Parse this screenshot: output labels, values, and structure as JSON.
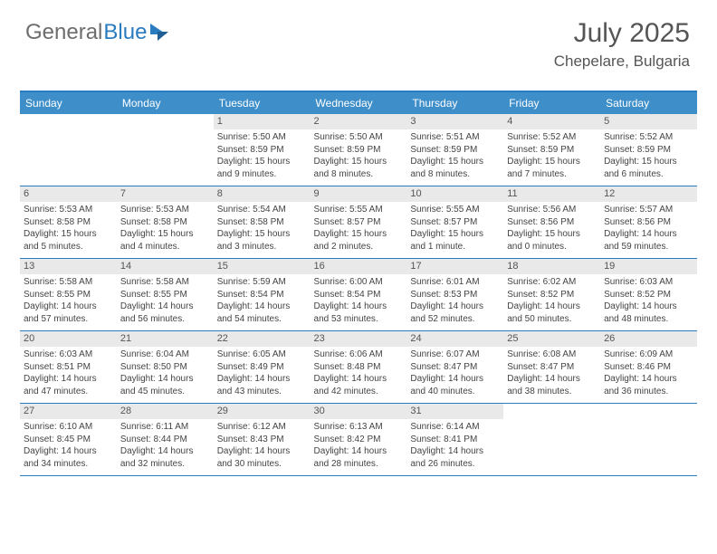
{
  "brand": {
    "part1": "General",
    "part2": "Blue"
  },
  "title": "July 2025",
  "location": "Chepelare, Bulgaria",
  "colors": {
    "header_bg": "#3d8ec9",
    "border": "#2a7bbf",
    "daynum_bg": "#e9e9e9",
    "text": "#555555",
    "body_text": "#444444",
    "background": "#ffffff"
  },
  "typography": {
    "title_fontsize": 30,
    "location_fontsize": 17,
    "dayheader_fontsize": 12,
    "daynum_fontsize": 11,
    "body_fontsize": 10
  },
  "day_headers": [
    "Sunday",
    "Monday",
    "Tuesday",
    "Wednesday",
    "Thursday",
    "Friday",
    "Saturday"
  ],
  "weeks": [
    {
      "nums": [
        "",
        "",
        "1",
        "2",
        "3",
        "4",
        "5"
      ],
      "cells": [
        {
          "sunrise": "",
          "sunset": "",
          "daylight": ""
        },
        {
          "sunrise": "",
          "sunset": "",
          "daylight": ""
        },
        {
          "sunrise": "Sunrise: 5:50 AM",
          "sunset": "Sunset: 8:59 PM",
          "daylight": "Daylight: 15 hours and 9 minutes."
        },
        {
          "sunrise": "Sunrise: 5:50 AM",
          "sunset": "Sunset: 8:59 PM",
          "daylight": "Daylight: 15 hours and 8 minutes."
        },
        {
          "sunrise": "Sunrise: 5:51 AM",
          "sunset": "Sunset: 8:59 PM",
          "daylight": "Daylight: 15 hours and 8 minutes."
        },
        {
          "sunrise": "Sunrise: 5:52 AM",
          "sunset": "Sunset: 8:59 PM",
          "daylight": "Daylight: 15 hours and 7 minutes."
        },
        {
          "sunrise": "Sunrise: 5:52 AM",
          "sunset": "Sunset: 8:59 PM",
          "daylight": "Daylight: 15 hours and 6 minutes."
        }
      ]
    },
    {
      "nums": [
        "6",
        "7",
        "8",
        "9",
        "10",
        "11",
        "12"
      ],
      "cells": [
        {
          "sunrise": "Sunrise: 5:53 AM",
          "sunset": "Sunset: 8:58 PM",
          "daylight": "Daylight: 15 hours and 5 minutes."
        },
        {
          "sunrise": "Sunrise: 5:53 AM",
          "sunset": "Sunset: 8:58 PM",
          "daylight": "Daylight: 15 hours and 4 minutes."
        },
        {
          "sunrise": "Sunrise: 5:54 AM",
          "sunset": "Sunset: 8:58 PM",
          "daylight": "Daylight: 15 hours and 3 minutes."
        },
        {
          "sunrise": "Sunrise: 5:55 AM",
          "sunset": "Sunset: 8:57 PM",
          "daylight": "Daylight: 15 hours and 2 minutes."
        },
        {
          "sunrise": "Sunrise: 5:55 AM",
          "sunset": "Sunset: 8:57 PM",
          "daylight": "Daylight: 15 hours and 1 minute."
        },
        {
          "sunrise": "Sunrise: 5:56 AM",
          "sunset": "Sunset: 8:56 PM",
          "daylight": "Daylight: 15 hours and 0 minutes."
        },
        {
          "sunrise": "Sunrise: 5:57 AM",
          "sunset": "Sunset: 8:56 PM",
          "daylight": "Daylight: 14 hours and 59 minutes."
        }
      ]
    },
    {
      "nums": [
        "13",
        "14",
        "15",
        "16",
        "17",
        "18",
        "19"
      ],
      "cells": [
        {
          "sunrise": "Sunrise: 5:58 AM",
          "sunset": "Sunset: 8:55 PM",
          "daylight": "Daylight: 14 hours and 57 minutes."
        },
        {
          "sunrise": "Sunrise: 5:58 AM",
          "sunset": "Sunset: 8:55 PM",
          "daylight": "Daylight: 14 hours and 56 minutes."
        },
        {
          "sunrise": "Sunrise: 5:59 AM",
          "sunset": "Sunset: 8:54 PM",
          "daylight": "Daylight: 14 hours and 54 minutes."
        },
        {
          "sunrise": "Sunrise: 6:00 AM",
          "sunset": "Sunset: 8:54 PM",
          "daylight": "Daylight: 14 hours and 53 minutes."
        },
        {
          "sunrise": "Sunrise: 6:01 AM",
          "sunset": "Sunset: 8:53 PM",
          "daylight": "Daylight: 14 hours and 52 minutes."
        },
        {
          "sunrise": "Sunrise: 6:02 AM",
          "sunset": "Sunset: 8:52 PM",
          "daylight": "Daylight: 14 hours and 50 minutes."
        },
        {
          "sunrise": "Sunrise: 6:03 AM",
          "sunset": "Sunset: 8:52 PM",
          "daylight": "Daylight: 14 hours and 48 minutes."
        }
      ]
    },
    {
      "nums": [
        "20",
        "21",
        "22",
        "23",
        "24",
        "25",
        "26"
      ],
      "cells": [
        {
          "sunrise": "Sunrise: 6:03 AM",
          "sunset": "Sunset: 8:51 PM",
          "daylight": "Daylight: 14 hours and 47 minutes."
        },
        {
          "sunrise": "Sunrise: 6:04 AM",
          "sunset": "Sunset: 8:50 PM",
          "daylight": "Daylight: 14 hours and 45 minutes."
        },
        {
          "sunrise": "Sunrise: 6:05 AM",
          "sunset": "Sunset: 8:49 PM",
          "daylight": "Daylight: 14 hours and 43 minutes."
        },
        {
          "sunrise": "Sunrise: 6:06 AM",
          "sunset": "Sunset: 8:48 PM",
          "daylight": "Daylight: 14 hours and 42 minutes."
        },
        {
          "sunrise": "Sunrise: 6:07 AM",
          "sunset": "Sunset: 8:47 PM",
          "daylight": "Daylight: 14 hours and 40 minutes."
        },
        {
          "sunrise": "Sunrise: 6:08 AM",
          "sunset": "Sunset: 8:47 PM",
          "daylight": "Daylight: 14 hours and 38 minutes."
        },
        {
          "sunrise": "Sunrise: 6:09 AM",
          "sunset": "Sunset: 8:46 PM",
          "daylight": "Daylight: 14 hours and 36 minutes."
        }
      ]
    },
    {
      "nums": [
        "27",
        "28",
        "29",
        "30",
        "31",
        "",
        ""
      ],
      "cells": [
        {
          "sunrise": "Sunrise: 6:10 AM",
          "sunset": "Sunset: 8:45 PM",
          "daylight": "Daylight: 14 hours and 34 minutes."
        },
        {
          "sunrise": "Sunrise: 6:11 AM",
          "sunset": "Sunset: 8:44 PM",
          "daylight": "Daylight: 14 hours and 32 minutes."
        },
        {
          "sunrise": "Sunrise: 6:12 AM",
          "sunset": "Sunset: 8:43 PM",
          "daylight": "Daylight: 14 hours and 30 minutes."
        },
        {
          "sunrise": "Sunrise: 6:13 AM",
          "sunset": "Sunset: 8:42 PM",
          "daylight": "Daylight: 14 hours and 28 minutes."
        },
        {
          "sunrise": "Sunrise: 6:14 AM",
          "sunset": "Sunset: 8:41 PM",
          "daylight": "Daylight: 14 hours and 26 minutes."
        },
        {
          "sunrise": "",
          "sunset": "",
          "daylight": ""
        },
        {
          "sunrise": "",
          "sunset": "",
          "daylight": ""
        }
      ]
    }
  ]
}
